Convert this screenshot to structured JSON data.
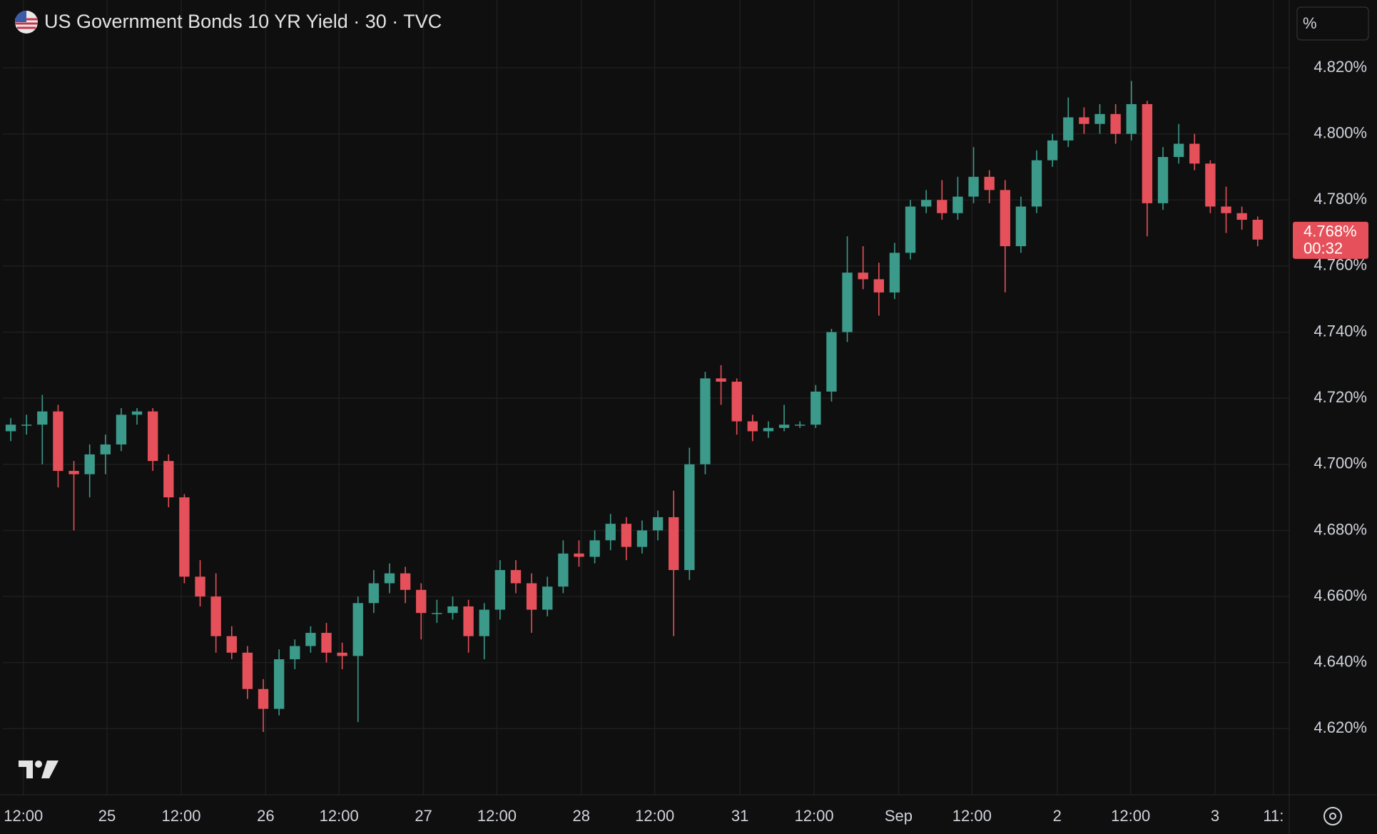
{
  "chart_data": {
    "type": "candlestick",
    "title": "US Government Bonds 10 YR Yield · 30 · TVC",
    "scale_button": "%",
    "up_color": "#3b9a89",
    "down_color": "#e5505a",
    "grid": true,
    "xlim": [
      0,
      163
    ],
    "ylim": [
      4.6,
      4.8405
    ],
    "yticks": [
      {
        "value": 4.62,
        "label": "4.620%"
      },
      {
        "value": 4.64,
        "label": "4.640%"
      },
      {
        "value": 4.66,
        "label": "4.660%"
      },
      {
        "value": 4.68,
        "label": "4.680%"
      },
      {
        "value": 4.7,
        "label": "4.700%"
      },
      {
        "value": 4.72,
        "label": "4.720%"
      },
      {
        "value": 4.74,
        "label": "4.740%"
      },
      {
        "value": 4.76,
        "label": "4.760%"
      },
      {
        "value": 4.78,
        "label": "4.780%"
      },
      {
        "value": 4.8,
        "label": "4.800%"
      },
      {
        "value": 4.82,
        "label": "4.820%"
      }
    ],
    "xticks": [
      {
        "value": 2.6,
        "label": "12:00"
      },
      {
        "value": 13.2,
        "label": "25"
      },
      {
        "value": 22.6,
        "label": "12:00"
      },
      {
        "value": 33.3,
        "label": "26"
      },
      {
        "value": 42.6,
        "label": "12:00"
      },
      {
        "value": 53.3,
        "label": "27"
      },
      {
        "value": 62.6,
        "label": "12:00"
      },
      {
        "value": 73.3,
        "label": "28"
      },
      {
        "value": 82.6,
        "label": "12:00"
      },
      {
        "value": 93.4,
        "label": "31"
      },
      {
        "value": 102.8,
        "label": "12:00"
      },
      {
        "value": 113.5,
        "label": "Sep"
      },
      {
        "value": 122.8,
        "label": "12:00"
      },
      {
        "value": 133.6,
        "label": "2"
      },
      {
        "value": 142.9,
        "label": "12:00"
      },
      {
        "value": 153.6,
        "label": "3"
      },
      {
        "value": 161,
        "label": "11:"
      }
    ],
    "last_price": {
      "value": 4.768,
      "label": "4.768%"
    },
    "countdown": "00:32",
    "x": [
      1,
      3,
      5,
      7,
      9,
      11,
      13,
      15,
      17,
      19,
      21,
      23,
      25,
      27,
      29,
      31,
      33,
      35,
      37,
      39,
      41,
      43,
      45,
      47,
      49,
      51,
      53,
      55,
      57,
      59,
      61,
      63,
      65,
      67,
      69,
      71,
      73,
      75,
      77,
      79,
      81,
      83,
      85,
      87,
      89,
      91,
      93,
      95,
      97,
      99,
      101,
      103,
      105,
      107,
      109,
      111,
      113,
      115,
      117,
      119,
      121,
      123,
      125,
      127,
      129,
      131,
      133,
      135,
      137,
      139,
      141,
      143,
      145,
      147,
      149,
      151,
      153,
      155,
      157,
      159
    ],
    "open": [
      4.71,
      4.712,
      4.712,
      4.716,
      4.698,
      4.697,
      4.703,
      4.706,
      4.715,
      4.716,
      4.701,
      4.69,
      4.666,
      4.66,
      4.648,
      4.643,
      4.632,
      4.626,
      4.641,
      4.645,
      4.649,
      4.643,
      4.642,
      4.658,
      4.664,
      4.667,
      4.662,
      4.655,
      4.655,
      4.657,
      4.648,
      4.656,
      4.668,
      4.664,
      4.656,
      4.663,
      4.673,
      4.672,
      4.677,
      4.682,
      4.675,
      4.68,
      4.684,
      4.668,
      4.7,
      4.726,
      4.725,
      4.713,
      4.71,
      4.711,
      4.712,
      4.712,
      4.722,
      4.74,
      4.758,
      4.756,
      4.752,
      4.764,
      4.778,
      4.78,
      4.776,
      4.781,
      4.787,
      4.783,
      4.766,
      4.778,
      4.792,
      4.798,
      4.805,
      4.803,
      4.806,
      4.8,
      4.809,
      4.779,
      4.793,
      4.797,
      4.791,
      4.778,
      4.776,
      4.774
    ],
    "high": [
      4.714,
      4.715,
      4.721,
      4.718,
      4.701,
      4.706,
      4.709,
      4.717,
      4.717,
      4.717,
      4.703,
      4.691,
      4.671,
      4.667,
      4.651,
      4.645,
      4.635,
      4.644,
      4.647,
      4.651,
      4.652,
      4.646,
      4.66,
      4.668,
      4.67,
      4.669,
      4.664,
      4.659,
      4.66,
      4.659,
      4.658,
      4.671,
      4.671,
      4.667,
      4.666,
      4.677,
      4.677,
      4.68,
      4.685,
      4.684,
      4.683,
      4.686,
      4.692,
      4.705,
      4.728,
      4.73,
      4.726,
      4.715,
      4.713,
      4.718,
      4.713,
      4.724,
      4.741,
      4.769,
      4.766,
      4.761,
      4.767,
      4.78,
      4.783,
      4.786,
      4.787,
      4.796,
      4.789,
      4.786,
      4.781,
      4.795,
      4.8,
      4.811,
      4.808,
      4.809,
      4.809,
      4.816,
      4.81,
      4.796,
      4.803,
      4.8,
      4.792,
      4.784,
      4.778,
      4.775
    ],
    "low": [
      4.707,
      4.709,
      4.7,
      4.693,
      4.68,
      4.69,
      4.697,
      4.704,
      4.712,
      4.698,
      4.687,
      4.664,
      4.657,
      4.643,
      4.641,
      4.629,
      4.619,
      4.624,
      4.638,
      4.643,
      4.64,
      4.638,
      4.622,
      4.655,
      4.661,
      4.658,
      4.647,
      4.652,
      4.653,
      4.643,
      4.641,
      4.653,
      4.661,
      4.649,
      4.654,
      4.661,
      4.669,
      4.67,
      4.674,
      4.671,
      4.673,
      4.677,
      4.648,
      4.665,
      4.697,
      4.718,
      4.709,
      4.707,
      4.708,
      4.71,
      4.711,
      4.711,
      4.719,
      4.737,
      4.753,
      4.745,
      4.75,
      4.762,
      4.776,
      4.774,
      4.774,
      4.779,
      4.779,
      4.752,
      4.764,
      4.776,
      4.79,
      4.796,
      4.8,
      4.8,
      4.797,
      4.798,
      4.769,
      4.777,
      4.791,
      4.789,
      4.776,
      4.77,
      4.771,
      4.766
    ],
    "close": [
      4.712,
      4.712,
      4.716,
      4.698,
      4.697,
      4.703,
      4.706,
      4.715,
      4.716,
      4.701,
      4.69,
      4.666,
      4.66,
      4.648,
      4.643,
      4.632,
      4.626,
      4.641,
      4.645,
      4.649,
      4.643,
      4.642,
      4.658,
      4.664,
      4.667,
      4.662,
      4.655,
      4.655,
      4.657,
      4.648,
      4.656,
      4.668,
      4.664,
      4.656,
      4.663,
      4.673,
      4.672,
      4.677,
      4.682,
      4.675,
      4.68,
      4.684,
      4.668,
      4.7,
      4.726,
      4.725,
      4.713,
      4.71,
      4.711,
      4.712,
      4.712,
      4.722,
      4.74,
      4.758,
      4.756,
      4.752,
      4.764,
      4.778,
      4.78,
      4.776,
      4.781,
      4.787,
      4.783,
      4.766,
      4.778,
      4.792,
      4.798,
      4.805,
      4.803,
      4.806,
      4.8,
      4.809,
      4.779,
      4.793,
      4.797,
      4.791,
      4.778,
      4.776,
      4.774,
      4.768
    ]
  }
}
